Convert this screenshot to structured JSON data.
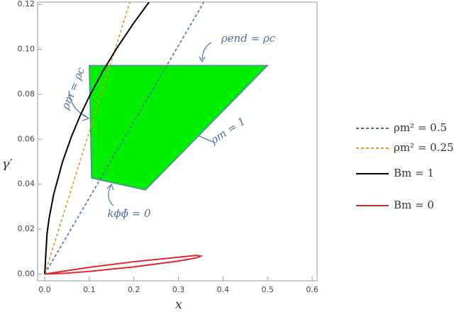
{
  "chart_data": {
    "type": "line",
    "xlabel": "x",
    "ylabel": "γ′",
    "xlim": [
      -0.016,
      0.611
    ],
    "ylim": [
      -0.003,
      0.121
    ],
    "xticks": [
      {
        "value": 0,
        "label": "0.0"
      },
      0.1,
      0.2,
      0.3,
      0.4,
      0.5,
      0.6
    ],
    "yticks": [
      {
        "value": 0,
        "label": "0.00"
      },
      0.02,
      0.04,
      0.06,
      0.08,
      {
        "value": 0.1,
        "label": "0.10"
      },
      0.12
    ],
    "legend": "right",
    "series": [
      {
        "name": "ρm² = 0.5",
        "color": "#4a6fa5",
        "style": "dashed",
        "x": [
          0,
          0.357
        ],
        "values": [
          0,
          0.121
        ]
      },
      {
        "name": "ρm² = 0.25",
        "color": "#e0942a",
        "style": "dashed",
        "x": [
          0,
          0.191
        ],
        "values": [
          0,
          0.121
        ]
      },
      {
        "name": "Bm = 1",
        "color": "#000000",
        "style": "solid",
        "x": [
          0,
          0.005,
          0.01,
          0.02,
          0.04,
          0.06,
          0.08,
          0.1,
          0.13,
          0.16,
          0.2,
          0.234
        ],
        "values": [
          0,
          0.0177,
          0.025,
          0.0354,
          0.05,
          0.0612,
          0.0707,
          0.079,
          0.0901,
          0.1,
          0.1118,
          0.121
        ]
      },
      {
        "name": "Bm = 0",
        "color": "#e0262e",
        "style": "solid",
        "x": [
          0,
          0.05,
          0.1,
          0.2,
          0.3,
          0.34,
          0.35,
          0.34,
          0.3,
          0.2,
          0.1,
          0.05,
          0
        ],
        "values": [
          0,
          0.0015,
          0.003,
          0.0055,
          0.0075,
          0.0083,
          0.008,
          0.0072,
          0.0058,
          0.0032,
          0.0012,
          0.0004,
          0
        ]
      }
    ],
    "regions": [
      {
        "color": "#00f000",
        "edge": "#5b7fb1",
        "x": [
          0.1,
          0.5,
          0.226,
          0.105
        ],
        "values": [
          0.0928,
          0.0928,
          0.0374,
          0.0427
        ]
      }
    ],
    "annotations": [
      "ρm = ρc",
      "ρend = ρc",
      "ρm = 1",
      "kϕϕ̄ = 0"
    ]
  }
}
